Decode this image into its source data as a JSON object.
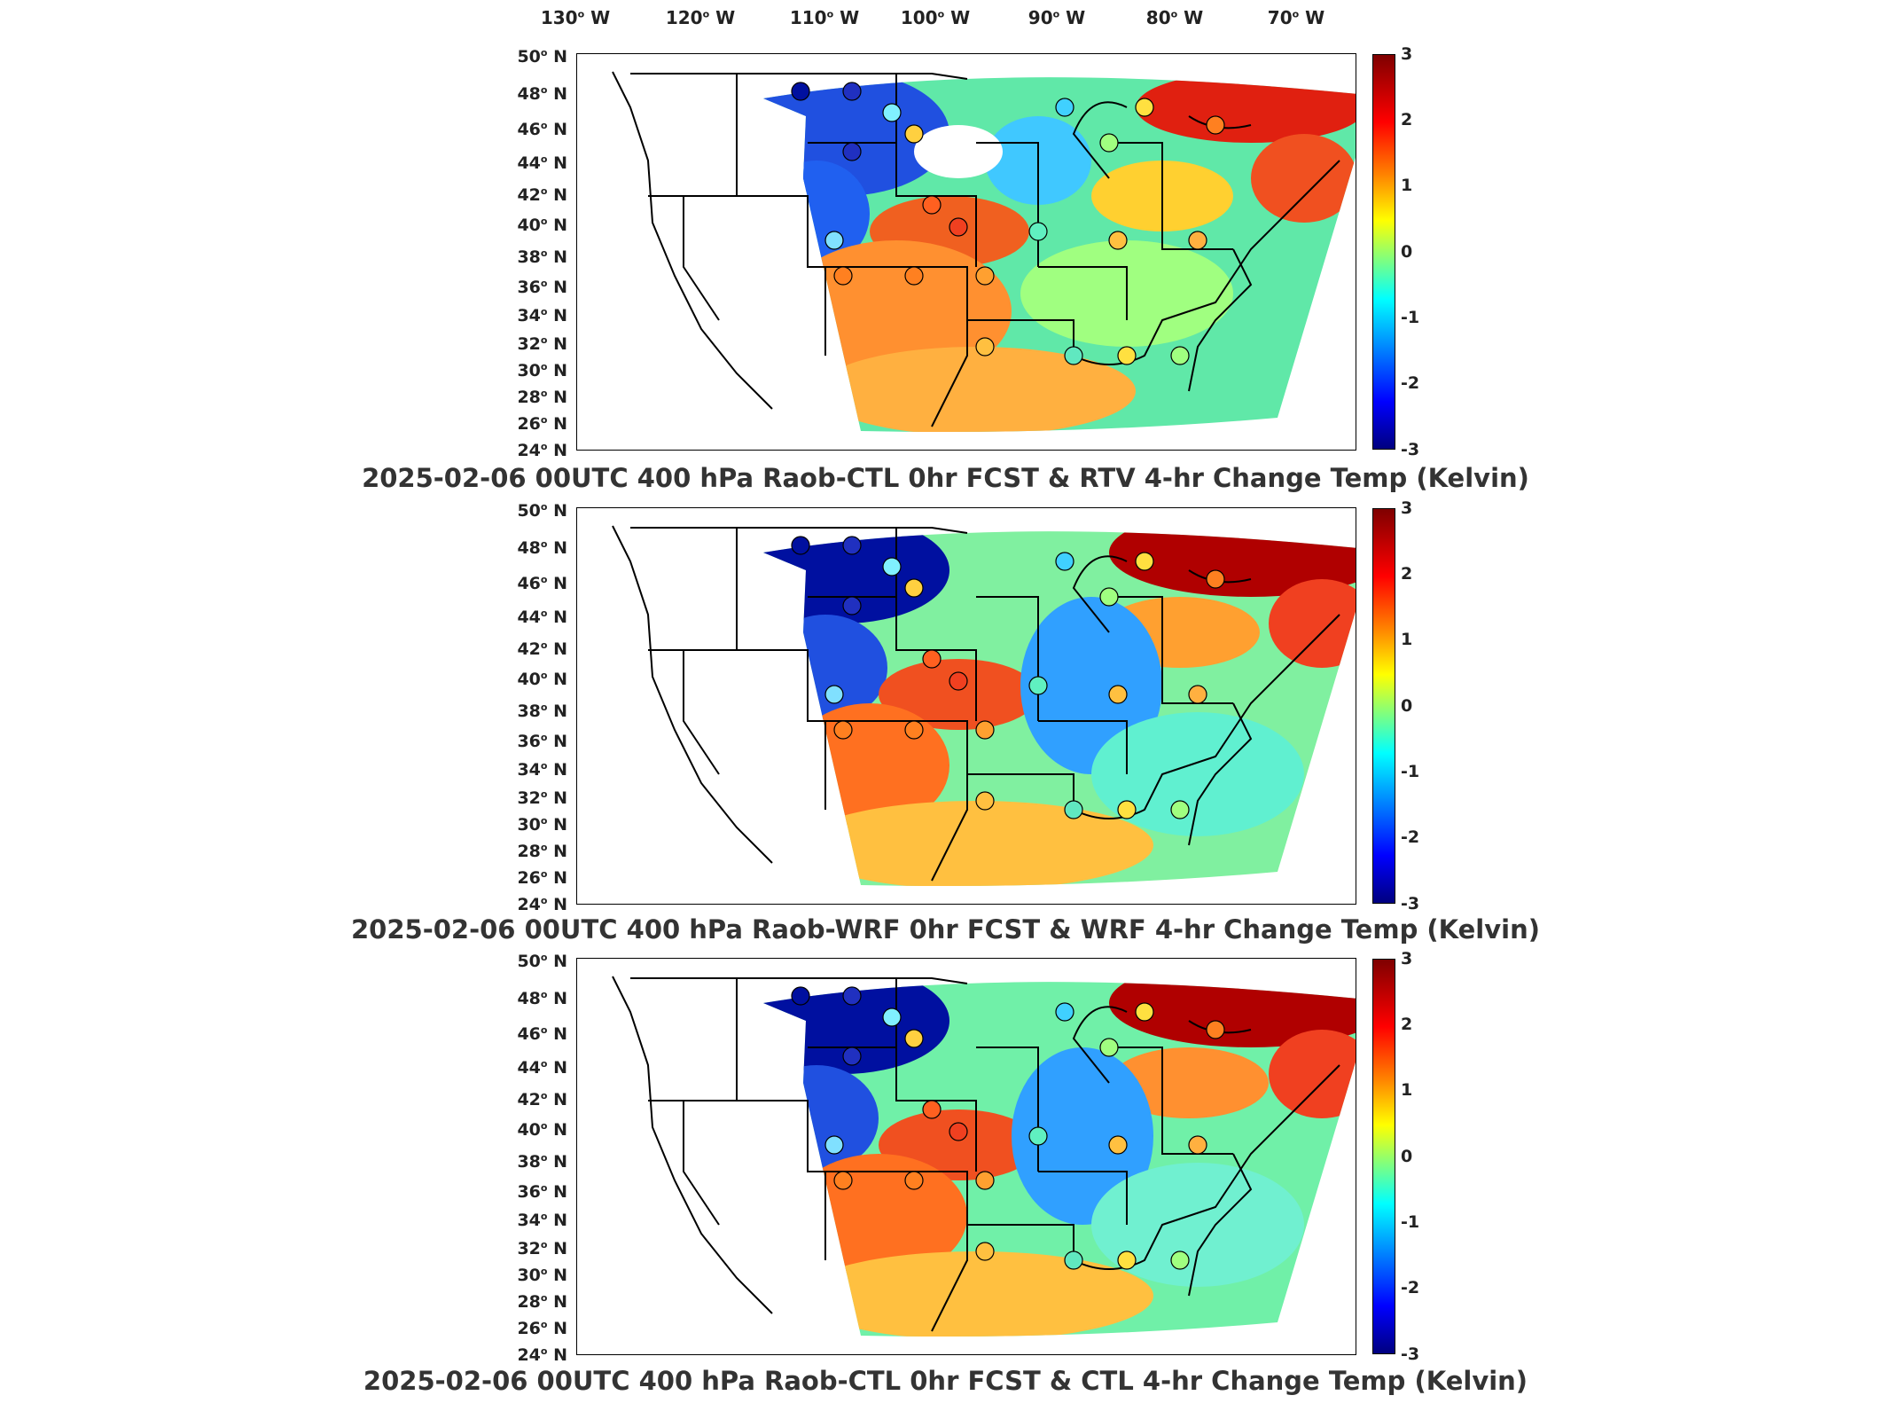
{
  "lon_labels": [
    "130",
    "120",
    "110",
    "100",
    "90",
    "80",
    "70"
  ],
  "lon_suffix": "W",
  "lat_labels": [
    "50",
    "48",
    "46",
    "44",
    "42",
    "40",
    "38",
    "36",
    "34",
    "32",
    "30",
    "28",
    "26",
    "24"
  ],
  "lat_suffix": "N",
  "colorbar_ticks": [
    "3",
    "2",
    "1",
    "0",
    "-1",
    "-2",
    "-3"
  ],
  "colorbar_range": [
    -3,
    3
  ],
  "colormap": "jet",
  "panels": [
    {
      "title": "2025-02-06 00UTC 400 hPa Raob-CTL 0hr FCST & RTV 4-hr Change Temp (Kelvin)"
    },
    {
      "title": "2025-02-06 00UTC 400 hPa Raob-WRF 0hr FCST & WRF 4-hr Change Temp (Kelvin)"
    },
    {
      "title": "2025-02-06 00UTC 400 hPa Raob-CTL 0hr FCST & CTL 4-hr Change Temp (Kelvin)"
    }
  ]
}
